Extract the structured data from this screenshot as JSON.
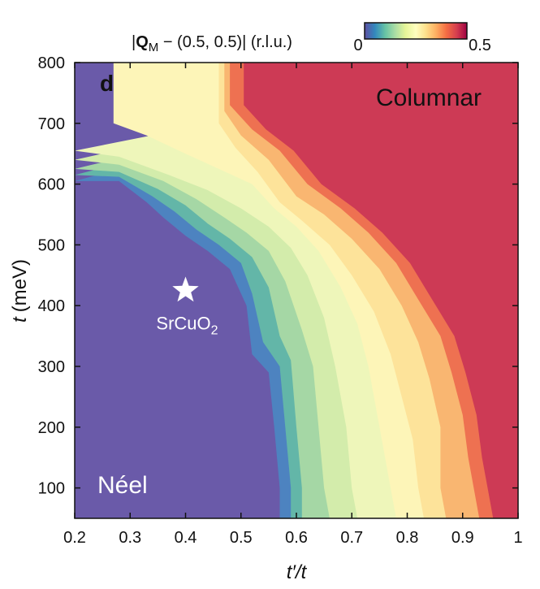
{
  "chart_data": {
    "type": "heatmap",
    "panel_label": "d",
    "xlabel": "t′/t",
    "ylabel_var": "t",
    "ylabel_unit": "(meV)",
    "xlim": [
      0.2,
      1.0
    ],
    "ylim": [
      50,
      800
    ],
    "xticks": [
      "0.2",
      "0.3",
      "0.4",
      "0.5",
      "0.6",
      "0.7",
      "0.8",
      "0.9",
      "1"
    ],
    "yticks": [
      "100",
      "200",
      "300",
      "400",
      "500",
      "600",
      "700",
      "800"
    ],
    "xtick_values": [
      0.2,
      0.3,
      0.4,
      0.5,
      0.6,
      0.7,
      0.8,
      0.9,
      1.0
    ],
    "ytick_values": [
      100,
      200,
      300,
      400,
      500,
      600,
      700,
      800
    ],
    "colorbar": {
      "label_prefix": "|",
      "label_bold": "Q",
      "label_sub": "M",
      "label_suffix": " − (0.5, 0.5)| (r.l.u.)",
      "min_label": "0",
      "max_label": "0.5",
      "range": [
        0,
        0.5
      ],
      "colors": [
        "#5e4fa2",
        "#3288bd",
        "#66c2a5",
        "#abdda4",
        "#e6f598",
        "#ffffbf",
        "#fee08b",
        "#fdae61",
        "#f46d43",
        "#d53e4f",
        "#9e0142"
      ]
    },
    "regions": [
      {
        "name": "Néel",
        "value": 0.0,
        "color": "#6a5aa9"
      },
      {
        "name": "Columnar",
        "value": 0.5,
        "color": "#cd3a55"
      }
    ],
    "contour_levels": [
      {
        "level": 0.05,
        "color": "#4d83c0",
        "boundary": [
          [
            0.2,
            605
          ],
          [
            0.28,
            605
          ],
          [
            0.33,
            570
          ],
          [
            0.36,
            545
          ],
          [
            0.4,
            515
          ],
          [
            0.44,
            490
          ],
          [
            0.48,
            460
          ],
          [
            0.51,
            400
          ],
          [
            0.52,
            320
          ],
          [
            0.55,
            290
          ],
          [
            0.56,
            200
          ],
          [
            0.57,
            100
          ],
          [
            0.57,
            50
          ]
        ]
      },
      {
        "level": 0.1,
        "color": "#63b6a8",
        "boundary": [
          [
            0.2,
            615
          ],
          [
            0.28,
            612
          ],
          [
            0.34,
            580
          ],
          [
            0.38,
            555
          ],
          [
            0.42,
            525
          ],
          [
            0.46,
            500
          ],
          [
            0.5,
            470
          ],
          [
            0.52,
            420
          ],
          [
            0.54,
            340
          ],
          [
            0.57,
            300
          ],
          [
            0.58,
            200
          ],
          [
            0.59,
            100
          ],
          [
            0.59,
            50
          ]
        ]
      },
      {
        "level": 0.15,
        "color": "#a5d7a5",
        "boundary": [
          [
            0.2,
            625
          ],
          [
            0.28,
            620
          ],
          [
            0.35,
            592
          ],
          [
            0.4,
            565
          ],
          [
            0.44,
            535
          ],
          [
            0.48,
            510
          ],
          [
            0.52,
            480
          ],
          [
            0.55,
            430
          ],
          [
            0.57,
            350
          ],
          [
            0.59,
            310
          ],
          [
            0.6,
            200
          ],
          [
            0.61,
            100
          ],
          [
            0.61,
            50
          ]
        ]
      },
      {
        "level": 0.2,
        "color": "#d3ecab",
        "boundary": [
          [
            0.2,
            640
          ],
          [
            0.28,
            632
          ],
          [
            0.36,
            605
          ],
          [
            0.42,
            575
          ],
          [
            0.47,
            545
          ],
          [
            0.51,
            520
          ],
          [
            0.55,
            490
          ],
          [
            0.58,
            440
          ],
          [
            0.61,
            360
          ],
          [
            0.63,
            300
          ],
          [
            0.64,
            200
          ],
          [
            0.65,
            100
          ],
          [
            0.66,
            50
          ]
        ]
      },
      {
        "level": 0.25,
        "color": "#eef6ba",
        "boundary": [
          [
            0.2,
            655
          ],
          [
            0.28,
            645
          ],
          [
            0.37,
            615
          ],
          [
            0.44,
            590
          ],
          [
            0.5,
            560
          ],
          [
            0.55,
            530
          ],
          [
            0.59,
            495
          ],
          [
            0.62,
            450
          ],
          [
            0.65,
            380
          ],
          [
            0.67,
            300
          ],
          [
            0.69,
            200
          ],
          [
            0.7,
            100
          ],
          [
            0.71,
            50
          ]
        ]
      },
      {
        "level": 0.3,
        "color": "#fdf5b8",
        "boundary": [
          [
            0.2,
            800
          ],
          [
            0.27,
            800
          ],
          [
            0.27,
            700
          ],
          [
            0.33,
            680
          ],
          [
            0.4,
            650
          ],
          [
            0.46,
            625
          ],
          [
            0.52,
            600
          ],
          [
            0.56,
            560
          ],
          [
            0.6,
            530
          ],
          [
            0.64,
            490
          ],
          [
            0.68,
            430
          ],
          [
            0.71,
            370
          ],
          [
            0.73,
            300
          ],
          [
            0.75,
            200
          ],
          [
            0.77,
            100
          ],
          [
            0.78,
            50
          ]
        ]
      },
      {
        "level": 0.35,
        "color": "#fde39a",
        "boundary": [
          [
            0.46,
            800
          ],
          [
            0.46,
            700
          ],
          [
            0.49,
            660
          ],
          [
            0.53,
            620
          ],
          [
            0.57,
            570
          ],
          [
            0.61,
            540
          ],
          [
            0.66,
            500
          ],
          [
            0.7,
            450
          ],
          [
            0.74,
            390
          ],
          [
            0.77,
            320
          ],
          [
            0.79,
            250
          ],
          [
            0.81,
            180
          ],
          [
            0.82,
            100
          ],
          [
            0.83,
            50
          ]
        ]
      },
      {
        "level": 0.4,
        "color": "#f9b671",
        "boundary": [
          [
            0.47,
            800
          ],
          [
            0.47,
            720
          ],
          [
            0.5,
            680
          ],
          [
            0.55,
            640
          ],
          [
            0.6,
            580
          ],
          [
            0.65,
            550
          ],
          [
            0.7,
            510
          ],
          [
            0.75,
            460
          ],
          [
            0.79,
            400
          ],
          [
            0.82,
            340
          ],
          [
            0.84,
            280
          ],
          [
            0.86,
            200
          ],
          [
            0.86,
            100
          ],
          [
            0.87,
            50
          ]
        ]
      },
      {
        "level": 0.45,
        "color": "#ee7151",
        "boundary": [
          [
            0.48,
            800
          ],
          [
            0.48,
            730
          ],
          [
            0.52,
            690
          ],
          [
            0.57,
            655
          ],
          [
            0.62,
            600
          ],
          [
            0.68,
            560
          ],
          [
            0.73,
            520
          ],
          [
            0.78,
            470
          ],
          [
            0.82,
            410
          ],
          [
            0.86,
            350
          ],
          [
            0.88,
            290
          ],
          [
            0.9,
            220
          ],
          [
            0.91,
            150
          ],
          [
            0.92,
            100
          ],
          [
            0.93,
            50
          ]
        ]
      }
    ],
    "annotation": {
      "marker": "star",
      "x": 0.4,
      "y": 425,
      "label_main": "SrCuO",
      "label_sub": "2",
      "color": "#ffffff"
    }
  }
}
